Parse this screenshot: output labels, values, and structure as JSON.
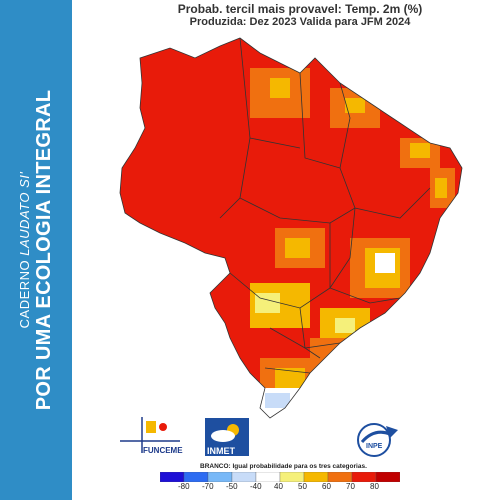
{
  "sidebar": {
    "subtitle": "CADERNO ",
    "subtitle_italic": "LAUDATO SI'",
    "main": "POR UMA ECOLOGIA INTEGRAL",
    "bg_color": "#2f8dc6"
  },
  "map": {
    "title": "Probab. tercil mais provavel: Temp. 2m (%)",
    "subtitle": "Produzida: Dez 2023   Valida para JFM 2024",
    "legend_note": "BRANCO: Igual probabilidade para os tres categorias.",
    "colorbar": {
      "ticks": [
        "-80",
        "-70",
        "-50",
        "-40",
        "40",
        "50",
        "60",
        "70",
        "80"
      ],
      "colors": [
        "#1e10d6",
        "#2d6cf2",
        "#78b8f7",
        "#c8dcf8",
        "#ffffff",
        "#f5f07a",
        "#f5b800",
        "#f07010",
        "#e81b0a",
        "#c00000"
      ]
    },
    "categories_colors": {
      "high": "#e81b0a",
      "medium_high": "#f07010",
      "medium": "#f5b800",
      "low": "#f5f07a",
      "equal": "#ffffff",
      "below": "#c8dcf8"
    }
  },
  "logos": {
    "funceme": "FUNCEME",
    "inmet": "INMET",
    "inpe": "INPE"
  }
}
